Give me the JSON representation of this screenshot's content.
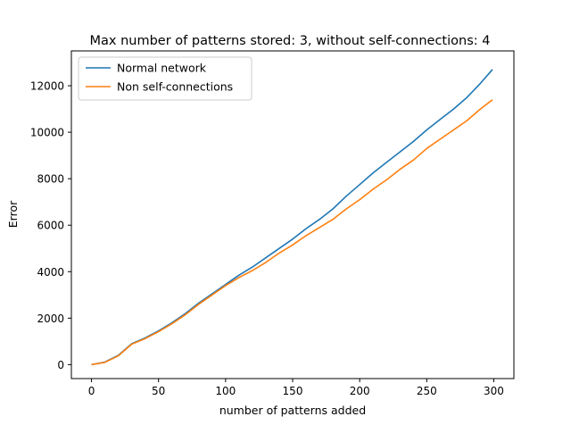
{
  "chart_data": {
    "type": "line",
    "title": "Max number of patterns stored: 3, without self-connections: 4",
    "xlabel": "number of patterns added",
    "ylabel": "Error",
    "xlim": [
      -15,
      315
    ],
    "ylim": [
      -600,
      13500
    ],
    "xticks": [
      0,
      50,
      100,
      150,
      200,
      250,
      300
    ],
    "yticks": [
      0,
      2000,
      4000,
      6000,
      8000,
      10000,
      12000
    ],
    "grid": false,
    "legend": "top-left",
    "series": [
      {
        "name": "Normal network",
        "color": "#1f77b4",
        "points": [
          [
            0,
            0
          ],
          [
            10,
            110
          ],
          [
            20,
            400
          ],
          [
            30,
            900
          ],
          [
            40,
            1150
          ],
          [
            50,
            1450
          ],
          [
            60,
            1800
          ],
          [
            70,
            2200
          ],
          [
            80,
            2650
          ],
          [
            90,
            3050
          ],
          [
            100,
            3450
          ],
          [
            110,
            3850
          ],
          [
            120,
            4200
          ],
          [
            130,
            4600
          ],
          [
            140,
            5000
          ],
          [
            150,
            5400
          ],
          [
            160,
            5850
          ],
          [
            170,
            6250
          ],
          [
            180,
            6700
          ],
          [
            190,
            7250
          ],
          [
            200,
            7750
          ],
          [
            210,
            8250
          ],
          [
            220,
            8700
          ],
          [
            230,
            9150
          ],
          [
            240,
            9600
          ],
          [
            250,
            10100
          ],
          [
            260,
            10550
          ],
          [
            270,
            11000
          ],
          [
            280,
            11500
          ],
          [
            290,
            12100
          ],
          [
            299,
            12700
          ]
        ]
      },
      {
        "name": "Non self-connections",
        "color": "#ff7f0e",
        "points": [
          [
            0,
            0
          ],
          [
            10,
            100
          ],
          [
            20,
            380
          ],
          [
            30,
            880
          ],
          [
            40,
            1120
          ],
          [
            50,
            1420
          ],
          [
            60,
            1760
          ],
          [
            70,
            2150
          ],
          [
            80,
            2600
          ],
          [
            90,
            3000
          ],
          [
            100,
            3400
          ],
          [
            110,
            3750
          ],
          [
            120,
            4050
          ],
          [
            130,
            4400
          ],
          [
            140,
            4800
          ],
          [
            150,
            5150
          ],
          [
            160,
            5550
          ],
          [
            170,
            5900
          ],
          [
            180,
            6250
          ],
          [
            190,
            6700
          ],
          [
            200,
            7100
          ],
          [
            210,
            7550
          ],
          [
            220,
            7950
          ],
          [
            230,
            8400
          ],
          [
            240,
            8800
          ],
          [
            250,
            9300
          ],
          [
            260,
            9700
          ],
          [
            270,
            10100
          ],
          [
            280,
            10500
          ],
          [
            290,
            11000
          ],
          [
            299,
            11400
          ]
        ]
      }
    ]
  }
}
